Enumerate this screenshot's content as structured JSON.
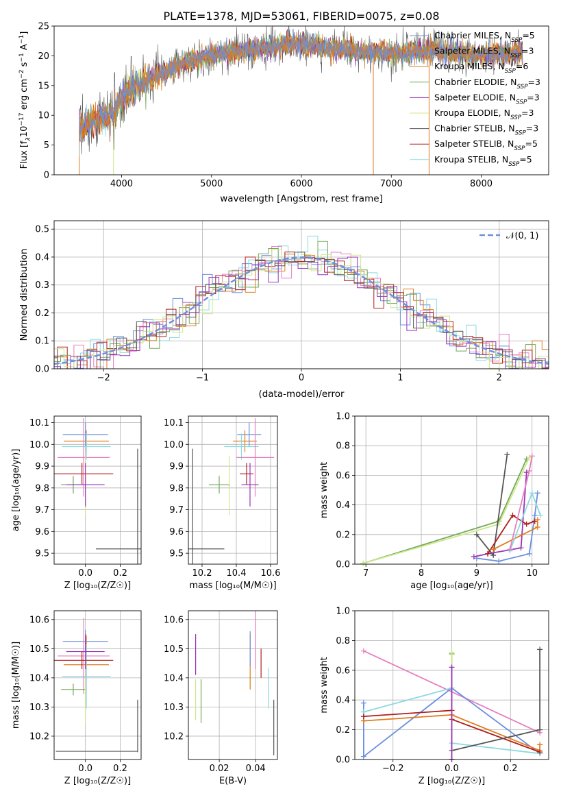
{
  "figure": {
    "title": "PLATE=1378, MJD=53061, FIBERID=0075, z=0.08"
  },
  "colors": {
    "blue": "#6a8fe0",
    "orange": "#e07a1a",
    "teal": "#8ad9e0",
    "pink": "#e67fbf",
    "red": "#b01e1e",
    "green": "#73a85a",
    "yellow": "#cfe88a",
    "gray": "#555555",
    "purple": "#9a33b8"
  },
  "chart_data": [
    {
      "id": "spectrum",
      "type": "line",
      "title": "PLATE=1378, MJD=53061, FIBERID=0075, z=0.08",
      "xlabel": "wavelength [Angstrom, rest frame]",
      "ylabel_parts": [
        "Flux [f",
        "λ",
        "10",
        "−17",
        " erg cm",
        "−2",
        " s",
        "−1",
        " A",
        "−1",
        "]"
      ],
      "xlim": [
        3250,
        8750
      ],
      "ylim": [
        0,
        25
      ],
      "xticks": [
        4000,
        5000,
        6000,
        7000,
        8000
      ],
      "yticks": [
        0,
        5,
        10,
        15,
        20,
        25
      ],
      "grid": false,
      "legend_position": "right",
      "continuum": {
        "x": [
          3550,
          3700,
          3900,
          4000,
          4100,
          4300,
          4500,
          4700,
          4900,
          5100,
          5300,
          5500,
          5700,
          5900,
          6100,
          6300,
          6500,
          6700,
          6900,
          7100,
          7300,
          7500,
          7700,
          7900,
          8100,
          8300,
          8450
        ],
        "y": [
          8.0,
          9.0,
          10.5,
          12.5,
          14.5,
          16.0,
          17.5,
          18.8,
          19.8,
          20.3,
          20.8,
          21.2,
          21.4,
          22.0,
          21.8,
          21.0,
          21.2,
          20.6,
          20.6,
          20.2,
          20.8,
          20.8,
          20.6,
          20.2,
          20.2,
          20.4,
          20.6
        ]
      },
      "series": [
        {
          "name_parts": [
            "Chabrier MILES, N",
            "SSP",
            "=5"
          ],
          "color": "blue"
        },
        {
          "name_parts": [
            "Salpeter MILES, N",
            "SSP",
            "=3"
          ],
          "color": "orange"
        },
        {
          "name_parts": [
            "Kroupa MILES, N",
            "SSP",
            "=6"
          ],
          "color": "orange"
        },
        {
          "name_parts": [
            "Chabrier ELODIE, N",
            "SSP",
            "=3"
          ],
          "color": "green"
        },
        {
          "name_parts": [
            "Salpeter ELODIE, N",
            "SSP",
            "=3"
          ],
          "color": "purple"
        },
        {
          "name_parts": [
            "Kroupa ELODIE, N",
            "SSP",
            "=3"
          ],
          "color": "yellow"
        },
        {
          "name_parts": [
            "Chabrier STELIB, N",
            "SSP",
            "=3"
          ],
          "color": "gray"
        },
        {
          "name_parts": [
            "Salpeter STELIB, N",
            "SSP",
            "=5"
          ],
          "color": "red"
        },
        {
          "name_parts": [
            "Kroupa STELIB, N",
            "SSP",
            "=5"
          ],
          "color": "teal"
        }
      ]
    },
    {
      "id": "residuals",
      "type": "histogram",
      "xlabel": "(data-model)/error",
      "ylabel": "Normed distribution",
      "xlim": [
        -2.5,
        2.5
      ],
      "ylim": [
        0,
        0.53
      ],
      "xticks": [
        -2,
        -1,
        0,
        1,
        2
      ],
      "xticklabels": [
        "−2",
        "−1",
        "0",
        "1",
        "2"
      ],
      "yticks": [
        0.0,
        0.1,
        0.2,
        0.3,
        0.4,
        0.5
      ],
      "yticklabels": [
        "0.0",
        "0.1",
        "0.2",
        "0.3",
        "0.4",
        "0.5"
      ],
      "grid": true,
      "legend_position": "top-right",
      "legend_label": "𝒩(0, 1)",
      "reference": {
        "type": "gaussian",
        "mean": 0,
        "sigma": 1,
        "color": "blue"
      },
      "bin_width": 0.1,
      "series_colors": [
        "blue",
        "orange",
        "teal",
        "pink",
        "red",
        "green",
        "yellow",
        "gray",
        "purple"
      ]
    },
    {
      "id": "age-vs-z",
      "type": "scatter",
      "xlabel": "Z [log₁₀(Z/Z☉)]",
      "ylabel": "age  [log₁₀(age/yr)]",
      "xlim": [
        -0.18,
        0.32
      ],
      "ylim": [
        9.45,
        10.13
      ],
      "xticks": [
        0.0,
        0.2
      ],
      "xticklabels": [
        "0.0",
        "0.2"
      ],
      "yticks": [
        9.5,
        9.6,
        9.7,
        9.8,
        9.9,
        10.0,
        10.1
      ],
      "yticklabels": [
        "9.5",
        "9.6",
        "9.7",
        "9.8",
        "9.9",
        "10.0",
        "10.1"
      ],
      "grid": true,
      "points": [
        {
          "color": "blue",
          "x": 0.0,
          "xerr": 0.13,
          "y": 10.045,
          "yerr": 0.055
        },
        {
          "color": "orange",
          "x": 0.005,
          "xerr": 0.13,
          "y": 10.015,
          "yerr": 0.05
        },
        {
          "color": "teal",
          "x": 0.005,
          "xerr": 0.14,
          "y": 9.99,
          "yerr": 0.06
        },
        {
          "color": "pink",
          "x": -0.01,
          "xerr": 0.15,
          "y": 9.94,
          "yerr": 0.18
        },
        {
          "color": "red",
          "x": -0.02,
          "xerr": 0.18,
          "y": 9.865,
          "yerr": 0.05
        },
        {
          "color": "green",
          "x": -0.07,
          "xerr": 0.07,
          "y": 9.815,
          "yerr": 0.04
        },
        {
          "color": "yellow",
          "x": 0.0,
          "xerr": 0.002,
          "y": 9.81,
          "yerr": 0.135
        },
        {
          "color": "purple",
          "x": 0.0,
          "xerr": 0.11,
          "y": 9.815,
          "yerr": 0.1
        },
        {
          "color": "gray",
          "x": 0.3,
          "xerr": 0.24,
          "y": 9.52,
          "yerr": 0.46
        }
      ]
    },
    {
      "id": "age-vs-mass",
      "type": "scatter",
      "xlabel": "mass [log₁₀(M/M☉)]",
      "ylabel": "",
      "xlim": [
        10.12,
        10.64
      ],
      "ylim": [
        9.45,
        10.13
      ],
      "xticks": [
        10.2,
        10.4,
        10.6
      ],
      "xticklabels": [
        "10.2",
        "10.4",
        "10.6"
      ],
      "yticks": [
        9.5,
        9.6,
        9.7,
        9.8,
        9.9,
        10.0,
        10.1
      ],
      "yticklabels": [
        "9.5",
        "9.6",
        "9.7",
        "9.8",
        "9.9",
        "10.0",
        "10.1"
      ],
      "grid": true,
      "points": [
        {
          "color": "blue",
          "x": 10.475,
          "xerr": 0.07,
          "y": 10.045,
          "yerr": 0.055
        },
        {
          "color": "orange",
          "x": 10.45,
          "xerr": 0.07,
          "y": 10.015,
          "yerr": 0.05
        },
        {
          "color": "teal",
          "x": 10.43,
          "xerr": 0.1,
          "y": 9.99,
          "yerr": 0.06
        },
        {
          "color": "pink",
          "x": 10.51,
          "xerr": 0.11,
          "y": 9.94,
          "yerr": 0.18
        },
        {
          "color": "red",
          "x": 10.46,
          "xerr": 0.04,
          "y": 9.865,
          "yerr": 0.05
        },
        {
          "color": "green",
          "x": 10.3,
          "xerr": 0.06,
          "y": 9.815,
          "yerr": 0.04
        },
        {
          "color": "yellow",
          "x": 10.36,
          "xerr": 0.005,
          "y": 9.81,
          "yerr": 0.135
        },
        {
          "color": "purple",
          "x": 10.48,
          "xerr": 0.05,
          "y": 9.815,
          "yerr": 0.1
        },
        {
          "color": "gray",
          "x": 10.145,
          "xerr": 0.005,
          "y": 9.52,
          "yerr": 0.46
        },
        {
          "color": "gray",
          "x": 10.14,
          "xerr": 0.19,
          "y": 9.52,
          "yerr": 0.0
        }
      ]
    },
    {
      "id": "weight-vs-age",
      "type": "line",
      "xlabel": "age  [log₁₀(age/yr)]",
      "ylabel": "mass weight",
      "xlim": [
        6.8,
        10.3
      ],
      "ylim": [
        0,
        1.0
      ],
      "xticks": [
        7,
        8,
        9,
        10
      ],
      "xticklabels": [
        "7",
        "8",
        "9",
        "10"
      ],
      "yticks": [
        0.0,
        0.2,
        0.4,
        0.6,
        0.8,
        1.0
      ],
      "yticklabels": [
        "0.0",
        "0.2",
        "0.4",
        "0.6",
        "0.8",
        "1.0"
      ],
      "grid": true,
      "series": [
        {
          "color": "green",
          "x": [
            6.95,
            9.4,
            9.9
          ],
          "y": [
            0.005,
            0.29,
            0.71
          ]
        },
        {
          "color": "yellow",
          "x": [
            6.95,
            9.4,
            9.95
          ],
          "y": [
            0.005,
            0.27,
            0.72
          ]
        },
        {
          "color": "gray",
          "x": [
            9.0,
            9.3,
            9.55
          ],
          "y": [
            0.2,
            0.06,
            0.74
          ]
        },
        {
          "color": "blue",
          "x": [
            9.0,
            9.4,
            9.95,
            10.05,
            10.1
          ],
          "y": [
            0.04,
            0.02,
            0.07,
            0.33,
            0.48
          ]
        },
        {
          "color": "purple",
          "x": [
            8.95,
            9.2,
            9.8,
            9.9
          ],
          "y": [
            0.05,
            0.07,
            0.11,
            0.62
          ]
        },
        {
          "color": "red",
          "x": [
            9.2,
            9.65,
            9.9,
            10.05
          ],
          "y": [
            0.07,
            0.33,
            0.27,
            0.29
          ]
        },
        {
          "color": "orange",
          "x": [
            9.3,
            10.1,
            10.1
          ],
          "y": [
            0.1,
            0.25,
            0.3
          ]
        },
        {
          "color": "teal",
          "x": [
            9.6,
            10.0,
            10.15
          ],
          "y": [
            0.09,
            0.48,
            0.33
          ]
        },
        {
          "color": "pink",
          "x": [
            9.6,
            9.95,
            10.0
          ],
          "y": [
            0.1,
            0.63,
            0.73
          ]
        }
      ]
    },
    {
      "id": "mass-vs-z",
      "type": "scatter",
      "xlabel": "Z [log₁₀(Z/Z☉)]",
      "ylabel": "mass [log₁₀(M/M☉)]",
      "xlim": [
        -0.18,
        0.32
      ],
      "ylim": [
        10.12,
        10.63
      ],
      "xticks": [
        0.0,
        0.2
      ],
      "xticklabels": [
        "0.0",
        "0.2"
      ],
      "yticks": [
        10.2,
        10.3,
        10.4,
        10.5,
        10.6
      ],
      "yticklabels": [
        "10.2",
        "10.3",
        "10.4",
        "10.5",
        "10.6"
      ],
      "grid": true,
      "points": [
        {
          "color": "blue",
          "x": 0.0,
          "xerr": 0.13,
          "y": 10.525,
          "yerr": 0.04
        },
        {
          "color": "orange",
          "x": 0.005,
          "xerr": 0.13,
          "y": 10.445,
          "yerr": 0.1
        },
        {
          "color": "teal",
          "x": 0.005,
          "xerr": 0.14,
          "y": 10.405,
          "yerr": 0.11
        },
        {
          "color": "pink",
          "x": -0.01,
          "xerr": 0.15,
          "y": 10.475,
          "yerr": 0.13
        },
        {
          "color": "red",
          "x": -0.02,
          "xerr": 0.18,
          "y": 10.46,
          "yerr": 0.03
        },
        {
          "color": "green",
          "x": -0.07,
          "xerr": 0.07,
          "y": 10.36,
          "yerr": 0.02
        },
        {
          "color": "yellow",
          "x": 0.0,
          "xerr": 0.002,
          "y": 10.32,
          "yerr": 0.08
        },
        {
          "color": "purple",
          "x": 0.0,
          "xerr": 0.11,
          "y": 10.49,
          "yerr": 0.06
        },
        {
          "color": "gray",
          "x": 0.3,
          "xerr": 0.002,
          "y": 10.235,
          "yerr": 0.09
        },
        {
          "color": "gray",
          "x": 0.065,
          "xerr": 0.235,
          "y": 10.148,
          "yerr": 0.0
        }
      ]
    },
    {
      "id": "mass-vs-ebv",
      "type": "scatter",
      "xlabel": "E(B-V)",
      "ylabel": "",
      "xlim": [
        0.003,
        0.052
      ],
      "ylim": [
        10.12,
        10.63
      ],
      "xticks": [
        0.02,
        0.04
      ],
      "xticklabels": [
        "0.02",
        "0.04"
      ],
      "yticks": [
        10.2,
        10.3,
        10.4,
        10.5,
        10.6
      ],
      "yticklabels": [
        "10.2",
        "10.3",
        "10.4",
        "10.5",
        "10.6"
      ],
      "grid": true,
      "points": [
        {
          "color": "purple",
          "x": 0.007,
          "xerr": 0.0,
          "y": 10.48,
          "yerr": 0.07
        },
        {
          "color": "yellow",
          "x": 0.007,
          "xerr": 0.0,
          "y": 10.325,
          "yerr": 0.07
        },
        {
          "color": "green",
          "x": 0.01,
          "xerr": 0.0,
          "y": 10.32,
          "yerr": 0.075
        },
        {
          "color": "orange",
          "x": 0.037,
          "xerr": 0.0,
          "y": 10.455,
          "yerr": 0.095
        },
        {
          "color": "blue",
          "x": 0.037,
          "xerr": 0.0,
          "y": 10.5,
          "yerr": 0.06
        },
        {
          "color": "pink",
          "x": 0.04,
          "xerr": 0.0,
          "y": 10.53,
          "yerr": 0.1
        },
        {
          "color": "red",
          "x": 0.043,
          "xerr": 0.0,
          "y": 10.45,
          "yerr": 0.05
        },
        {
          "color": "teal",
          "x": 0.047,
          "xerr": 0.0,
          "y": 10.365,
          "yerr": 0.07
        },
        {
          "color": "gray",
          "x": 0.05,
          "xerr": 0.0,
          "y": 10.23,
          "yerr": 0.095
        }
      ]
    },
    {
      "id": "weight-vs-z",
      "type": "line",
      "xlabel": "Z [log₁₀(Z/Z☉)]",
      "ylabel": "mass weight",
      "xlim": [
        -0.33,
        0.33
      ],
      "ylim": [
        0,
        1.0
      ],
      "xticks": [
        -0.2,
        0.0,
        0.2
      ],
      "xticklabels": [
        "−0.2",
        "0.0",
        "0.2"
      ],
      "yticks": [
        0.0,
        0.2,
        0.4,
        0.6,
        0.8,
        1.0
      ],
      "yticklabels": [
        "0.0",
        "0.2",
        "0.4",
        "0.6",
        "0.8",
        "1.0"
      ],
      "grid": true,
      "series": [
        {
          "color": "pink",
          "x": [
            -0.3,
            0.3
          ],
          "y": [
            0.73,
            0.18
          ]
        },
        {
          "color": "blue",
          "x": [
            -0.3,
            -0.3,
            0.0,
            0.3
          ],
          "y": [
            0.38,
            0.02,
            0.48,
            0.04
          ]
        },
        {
          "color": "teal",
          "x": [
            -0.3,
            0.0,
            0.0,
            0.3
          ],
          "y": [
            0.32,
            0.48,
            0.11,
            0.04
          ]
        },
        {
          "color": "orange",
          "x": [
            -0.3,
            0.0,
            0.3,
            0.3
          ],
          "y": [
            0.26,
            0.3,
            0.06,
            0.1
          ]
        },
        {
          "color": "red",
          "x": [
            -0.3,
            0.0,
            0.0,
            0.3
          ],
          "y": [
            0.29,
            0.33,
            0.27,
            0.05
          ]
        },
        {
          "color": "gray",
          "x": [
            0.0,
            0.3,
            0.3
          ],
          "y": [
            0.06,
            0.2,
            0.74
          ]
        },
        {
          "color": "green",
          "x": [
            0.0,
            0.0
          ],
          "y": [
            0.0,
            0.71
          ]
        },
        {
          "color": "yellow",
          "x": [
            0.0,
            0.0
          ],
          "y": [
            0.0,
            0.72
          ]
        },
        {
          "color": "purple",
          "x": [
            0.0,
            0.0
          ],
          "y": [
            0.0,
            0.62
          ]
        }
      ]
    }
  ]
}
